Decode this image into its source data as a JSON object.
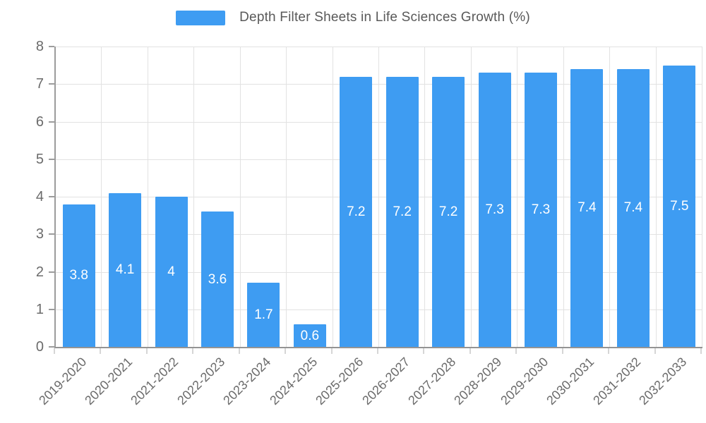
{
  "chart_data": {
    "type": "bar",
    "title": "Depth Filter Sheets in Life Sciences Growth (%)",
    "categories": [
      "2019-2020",
      "2020-2021",
      "2021-2022",
      "2022-2023",
      "2023-2024",
      "2024-2025",
      "2025-2026",
      "2026-2027",
      "2027-2028",
      "2028-2029",
      "2029-2030",
      "2030-2031",
      "2031-2032",
      "2032-2033"
    ],
    "values": [
      3.8,
      4.1,
      4,
      3.6,
      1.7,
      0.6,
      7.2,
      7.2,
      7.2,
      7.3,
      7.3,
      7.4,
      7.4,
      7.5
    ],
    "value_labels": [
      "3.8",
      "4.1",
      "4",
      "3.6",
      "1.7",
      "0.6",
      "7.2",
      "7.2",
      "7.2",
      "7.3",
      "7.3",
      "7.4",
      "7.4",
      "7.5"
    ],
    "xlabel": "",
    "ylabel": "",
    "ylim": [
      0,
      8
    ],
    "yticks": [
      0,
      1,
      2,
      3,
      4,
      5,
      6,
      7,
      8
    ],
    "grid": true,
    "legend_position": "top",
    "colors": {
      "bar": "#3E9CF2",
      "bar_label": "#FFFFFF",
      "axis": "#999999",
      "grid": "#E2E2E2",
      "tick_text": "#6B6B6B",
      "title_text": "#595959"
    }
  }
}
